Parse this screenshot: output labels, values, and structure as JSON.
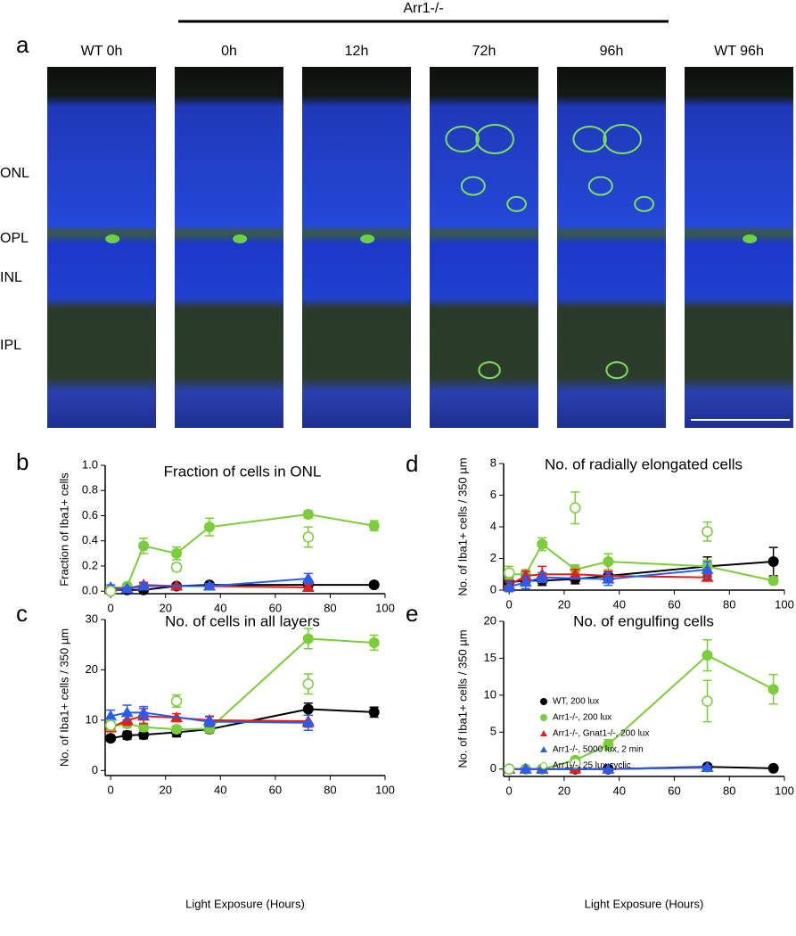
{
  "panel_a": {
    "label": "a",
    "group_label": "Arr1-/-",
    "columns": [
      "WT 0h",
      "0h",
      "12h",
      "72h",
      "96h",
      "WT 96h"
    ],
    "layers": [
      "ONL",
      "OPL",
      "INL",
      "IPL"
    ]
  },
  "chart_data": [
    {
      "type": "line",
      "panel": "b",
      "title": "Fraction of cells in ONL",
      "ylabel": "Fraction of Iba1+ cells",
      "xlim": [
        -2,
        100
      ],
      "xticks": [
        0,
        20,
        40,
        60,
        80,
        100
      ],
      "ylim": [
        -0.02,
        1.0
      ],
      "yticks": [
        {
          "value": 0,
          "label": "0.0"
        },
        {
          "value": 0.2,
          "label": "0.2"
        },
        {
          "value": 0.4,
          "label": "0.4"
        },
        {
          "value": 0.6,
          "label": "0.6"
        },
        {
          "value": 0.8,
          "label": "0.8"
        },
        {
          "value": 1.0,
          "label": "1.0"
        }
      ],
      "series": [
        {
          "name": "WT, 200 lux",
          "color": "#000000",
          "marker": "circle",
          "x": [
            0,
            6,
            12,
            24,
            36,
            72,
            96
          ],
          "values": [
            0.01,
            0.01,
            0.01,
            0.04,
            0.05,
            0.05,
            0.05
          ],
          "errors": [
            0.01,
            0.01,
            0.01,
            0.01,
            0.02,
            0.02,
            0.02
          ]
        },
        {
          "name": "Arr1-/-, 200 lux",
          "color": "#7ccd3a",
          "marker": "circle",
          "x": [
            0,
            6,
            12,
            24,
            36,
            72,
            96
          ],
          "values": [
            0.01,
            0.04,
            0.36,
            0.3,
            0.51,
            0.61,
            0.52
          ],
          "errors": [
            0.01,
            0.02,
            0.06,
            0.05,
            0.07,
            0.03,
            0.04
          ]
        },
        {
          "name": "Arr1-/-, Gnat1-/-, 200 lux",
          "color": "#e0201b",
          "marker": "triangle",
          "x": [
            0,
            6,
            12,
            24,
            36,
            72
          ],
          "values": [
            0.01,
            0.02,
            0.05,
            0.04,
            0.04,
            0.03
          ],
          "errors": [
            0.01,
            0.01,
            0.02,
            0.01,
            0.01,
            0.02
          ]
        },
        {
          "name": "Arr1-/-, 5000 lux, 2 min",
          "color": "#2b5cf0",
          "marker": "triangle",
          "x": [
            0,
            6,
            12,
            36,
            72
          ],
          "values": [
            0.03,
            0.02,
            0.04,
            0.04,
            0.1
          ],
          "errors": [
            0.02,
            0.01,
            0.02,
            0.02,
            0.04
          ]
        },
        {
          "name": "Arr1-/-, 25 lux cyclic",
          "color": "#7ccd3a",
          "marker": "open-circle",
          "x": [
            0,
            24,
            72
          ],
          "values": [
            0.0,
            0.19,
            0.43
          ],
          "errors": [
            0.02,
            0.03,
            0.08
          ]
        }
      ]
    },
    {
      "type": "line",
      "panel": "d",
      "title": "No. of radially elongated cells",
      "ylabel": "No. of Iba1+ cells / 350 µm",
      "xlim": [
        -2,
        100
      ],
      "xticks": [
        0,
        20,
        40,
        60,
        80,
        100
      ],
      "ylim": [
        0,
        8
      ],
      "yticks": [
        0,
        2,
        4,
        6,
        8
      ],
      "series": [
        {
          "name": "WT, 200 lux",
          "color": "#000000",
          "marker": "circle",
          "x": [
            0,
            6,
            12,
            24,
            36,
            72,
            96
          ],
          "values": [
            0.5,
            0.6,
            0.6,
            0.7,
            0.9,
            1.5,
            1.8
          ],
          "errors": [
            0.3,
            0.3,
            0.3,
            0.3,
            0.3,
            0.6,
            0.9
          ]
        },
        {
          "name": "Arr1-/-, 200 lux",
          "color": "#7ccd3a",
          "marker": "circle",
          "x": [
            0,
            6,
            12,
            24,
            36,
            72,
            96
          ],
          "values": [
            1.0,
            1.0,
            2.9,
            1.3,
            1.8,
            1.5,
            0.6
          ],
          "errors": [
            0.3,
            0.3,
            0.4,
            0.3,
            0.5,
            0.4,
            0.2
          ]
        },
        {
          "name": "Arr1-/-, Gnat1-/-, 200 lux",
          "color": "#e0201b",
          "marker": "triangle",
          "x": [
            0,
            6,
            12,
            24,
            36,
            72
          ],
          "values": [
            0.3,
            0.9,
            1.0,
            1.0,
            0.9,
            0.8
          ],
          "errors": [
            0.3,
            0.3,
            0.5,
            0.3,
            0.3,
            0.2
          ]
        },
        {
          "name": "Arr1-/-, 5000 lux, 2 min",
          "color": "#2b5cf0",
          "marker": "triangle",
          "x": [
            0,
            6,
            12,
            36,
            72
          ],
          "values": [
            0.2,
            0.5,
            0.8,
            0.7,
            1.3
          ],
          "errors": [
            0.3,
            0.4,
            0.3,
            0.4,
            0.5
          ]
        },
        {
          "name": "Arr1-/-, 25 lux cyclic",
          "color": "#7ccd3a",
          "marker": "open-circle",
          "x": [
            0,
            24,
            72
          ],
          "values": [
            1.1,
            5.2,
            3.7
          ],
          "errors": [
            0.4,
            1.0,
            0.6
          ]
        }
      ]
    },
    {
      "type": "line",
      "panel": "c",
      "title": "No. of cells in all layers",
      "ylabel": "No. of Iba1+ cells / 350 µm",
      "xlabel": "Light Exposure (Hours)",
      "xlim": [
        -2,
        100
      ],
      "xticks": [
        0,
        20,
        40,
        60,
        80,
        100
      ],
      "ylim": [
        -1,
        30
      ],
      "yticks": [
        0,
        10,
        20,
        30
      ],
      "series": [
        {
          "name": "WT, 200 lux",
          "color": "#000000",
          "marker": "circle",
          "x": [
            0,
            6,
            12,
            24,
            36,
            72,
            96
          ],
          "values": [
            6.4,
            7.0,
            7.1,
            7.6,
            8.2,
            12.2,
            11.6
          ],
          "errors": [
            0.6,
            0.8,
            0.8,
            0.9,
            0.7,
            1.2,
            1.0
          ]
        },
        {
          "name": "Arr1-/-, 200 lux",
          "color": "#7ccd3a",
          "marker": "circle",
          "x": [
            0,
            6,
            12,
            24,
            36,
            72,
            96
          ],
          "values": [
            8.8,
            9.3,
            8.6,
            8.2,
            8.3,
            26.2,
            25.4
          ],
          "errors": [
            0.7,
            0.8,
            0.8,
            0.7,
            0.7,
            2.0,
            1.5
          ]
        },
        {
          "name": "Arr1-/-, Gnat1-/-, 200 lux",
          "color": "#e0201b",
          "marker": "triangle",
          "x": [
            0,
            6,
            12,
            24,
            36,
            72
          ],
          "values": [
            8.5,
            10.0,
            10.8,
            10.5,
            10.0,
            9.8
          ],
          "errors": [
            0.8,
            1.0,
            1.5,
            0.8,
            0.8,
            1.2
          ]
        },
        {
          "name": "Arr1-/-, 5000 lux, 2 min",
          "color": "#2b5cf0",
          "marker": "triangle",
          "x": [
            0,
            6,
            12,
            36,
            72
          ],
          "values": [
            10.8,
            11.5,
            11.5,
            9.7,
            9.5
          ],
          "errors": [
            1.2,
            1.5,
            1.2,
            1.0,
            1.5
          ]
        },
        {
          "name": "Arr1-/-, 25 lux cyclic",
          "color": "#7ccd3a",
          "marker": "open-circle",
          "x": [
            0,
            24,
            72
          ],
          "values": [
            9.0,
            13.8,
            17.2
          ],
          "errors": [
            1.0,
            1.2,
            2.0
          ]
        }
      ]
    },
    {
      "type": "line",
      "panel": "e",
      "title": "No. of engulfing cells",
      "ylabel": "No. of Iba1+ cells / 350 µm",
      "xlabel": "Light Exposure (Hours)",
      "xlim": [
        -2,
        100
      ],
      "xticks": [
        0,
        20,
        40,
        60,
        80,
        100
      ],
      "ylim": [
        -1,
        20
      ],
      "yticks": [
        0,
        5,
        10,
        15,
        20
      ],
      "legend": "upper-left",
      "series": [
        {
          "name": "WT, 200 lux",
          "color": "#000000",
          "marker": "circle",
          "x": [
            0,
            6,
            12,
            24,
            36,
            72,
            96
          ],
          "values": [
            0,
            0,
            0,
            0,
            0,
            0.3,
            0.1
          ],
          "errors": [
            0.1,
            0.1,
            0.1,
            0.1,
            0.1,
            0.2,
            0.1
          ]
        },
        {
          "name": "Arr1-/-, 200 lux",
          "color": "#7ccd3a",
          "marker": "circle",
          "x": [
            0,
            6,
            12,
            24,
            36,
            72,
            96
          ],
          "values": [
            0,
            0,
            0,
            1.2,
            3.3,
            15.4,
            10.8
          ],
          "errors": [
            0.2,
            0.2,
            0.2,
            0.4,
            0.7,
            2.1,
            2.0
          ]
        },
        {
          "name": "Arr1-/-, Gnat1-/-, 200 lux",
          "color": "#e0201b",
          "marker": "triangle",
          "x": [
            0,
            6,
            12,
            24,
            36,
            72
          ],
          "values": [
            0,
            0,
            0,
            0,
            0,
            0.2
          ],
          "errors": [
            0.1,
            0.1,
            0.1,
            0.1,
            0.1,
            0.2
          ]
        },
        {
          "name": "Arr1-/-, 5000 lux, 2 min",
          "color": "#2b5cf0",
          "marker": "triangle",
          "x": [
            0,
            6,
            12,
            36,
            72
          ],
          "values": [
            0,
            0,
            0,
            0,
            0.2
          ],
          "errors": [
            0.1,
            0.1,
            0.1,
            0.1,
            0.2
          ]
        },
        {
          "name": "Arr1-/-, 25 lux cyclic",
          "color": "#7ccd3a",
          "marker": "open-circle",
          "x": [
            0,
            24,
            72
          ],
          "values": [
            0,
            0.8,
            9.2
          ],
          "errors": [
            0.3,
            0.3,
            2.8
          ]
        }
      ]
    }
  ]
}
